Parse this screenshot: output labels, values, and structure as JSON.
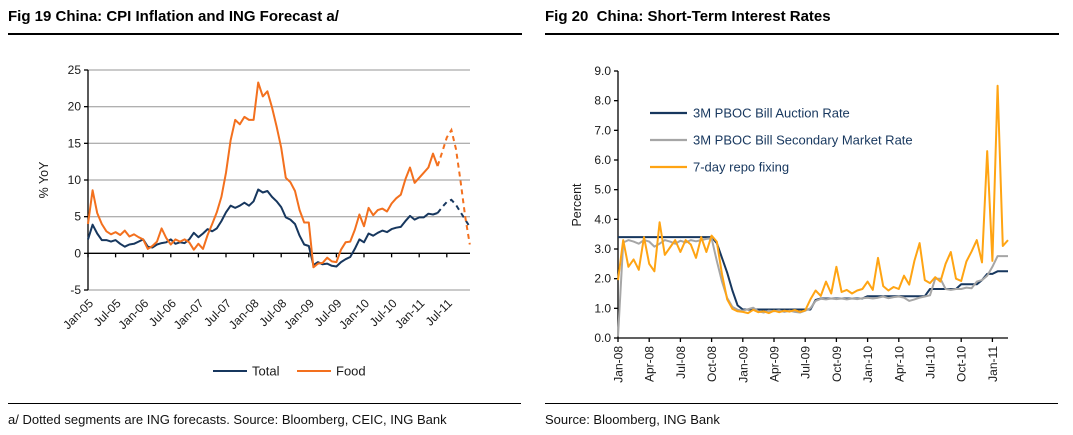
{
  "panels": {
    "left": {
      "title": "Fig 19 China: CPI Inflation and ING Forecast a/",
      "footnote": "a/ Dotted segments are ING forecasts. Source: Bloomberg, CEIC, ING Bank"
    },
    "right": {
      "title": "Fig 20  China: Short-Term Interest Rates",
      "footnote": "Source: Bloomberg, ING Bank"
    }
  },
  "chart_data": [
    {
      "id": "cpi",
      "type": "line",
      "title": "China: CPI Inflation and ING Forecast",
      "ylabel": "% YoY",
      "ylim": [
        -5,
        25
      ],
      "y_tick_labels": [
        "25",
        "20",
        "15",
        "10",
        "5",
        "0",
        "-5"
      ],
      "grid": true,
      "grid_color": "#969696",
      "grid_values": [
        25,
        20,
        15,
        10,
        5,
        -5
      ],
      "x_unit": "month",
      "x_start": "Jan-05",
      "x_end": "Dec-11",
      "x_tick_labels": [
        "Jan-05",
        "Jul-05",
        "Jan-06",
        "Jul-06",
        "Jan-07",
        "Jul-07",
        "Jan-08",
        "Jul-08",
        "Jan-09",
        "Jul-09",
        "Jan-10",
        "Jul-10",
        "Jan-11",
        "Jul-11"
      ],
      "x_tick_every": 6,
      "forecast_from_index": 76,
      "forecast_note": "Dotted segments are ING forecasts",
      "legend_position": "bottom",
      "series": [
        {
          "name": "Total",
          "color": "#17375E",
          "values": [
            1.9,
            3.9,
            2.7,
            1.8,
            1.8,
            1.6,
            1.8,
            1.3,
            0.9,
            1.2,
            1.3,
            1.6,
            1.9,
            0.9,
            0.8,
            1.2,
            1.4,
            1.5,
            1.9,
            1.3,
            1.5,
            1.4,
            1.9,
            2.8,
            2.2,
            2.7,
            3.3,
            3.0,
            3.4,
            4.4,
            5.6,
            6.5,
            6.2,
            6.5,
            6.9,
            6.5,
            7.1,
            8.7,
            8.3,
            8.5,
            7.7,
            7.1,
            6.3,
            4.9,
            4.6,
            4.0,
            2.4,
            1.2,
            1.0,
            -1.6,
            -1.2,
            -1.5,
            -1.4,
            -1.7,
            -1.8,
            -1.2,
            -0.8,
            -0.5,
            0.6,
            1.9,
            1.5,
            2.7,
            2.4,
            2.8,
            3.1,
            2.9,
            3.3,
            3.5,
            3.6,
            4.4,
            5.1,
            4.6,
            4.9,
            4.9,
            5.4,
            5.3,
            5.5,
            6.3,
            7.0,
            7.3,
            6.6,
            5.6,
            4.6,
            3.6
          ]
        },
        {
          "name": "Food",
          "color": "#F3701E",
          "values": [
            4.0,
            8.6,
            5.5,
            4.0,
            3.0,
            2.6,
            2.9,
            2.5,
            3.1,
            2.3,
            2.6,
            2.2,
            1.9,
            0.6,
            1.0,
            1.6,
            3.4,
            2.1,
            1.2,
            1.9,
            1.6,
            1.9,
            1.5,
            0.5,
            1.3,
            0.6,
            2.5,
            4.0,
            5.6,
            7.7,
            11.0,
            15.4,
            18.2,
            17.6,
            18.6,
            18.2,
            18.2,
            23.3,
            21.4,
            22.1,
            19.9,
            17.3,
            14.4,
            10.3,
            9.7,
            8.5,
            5.9,
            4.2,
            4.2,
            -1.9,
            -1.4,
            -1.3,
            -0.6,
            -1.1,
            -1.2,
            0.5,
            1.5,
            1.6,
            3.2,
            5.3,
            3.7,
            6.2,
            5.2,
            5.9,
            6.1,
            5.7,
            6.8,
            7.5,
            8.0,
            10.1,
            11.7,
            9.6,
            10.3,
            11.0,
            11.7,
            13.6,
            11.9,
            13.8,
            15.8,
            16.8,
            14.2,
            9.8,
            5.0,
            1.2
          ]
        }
      ]
    },
    {
      "id": "rates",
      "type": "line",
      "title": "China: Short-Term Interest Rates",
      "ylabel": "Percent",
      "ylim": [
        0,
        9
      ],
      "y_tick_labels": [
        "9.0",
        "8.0",
        "7.0",
        "6.0",
        "5.0",
        "4.0",
        "3.0",
        "2.0",
        "1.0",
        "0.0"
      ],
      "grid": false,
      "x_unit": "half-month",
      "x_start": "Jan-08",
      "x_end": "Mar-11",
      "x_tick_labels": [
        "Jan-08",
        "Apr-08",
        "Jul-08",
        "Oct-08",
        "Jan-09",
        "Apr-09",
        "Jul-09",
        "Oct-09",
        "Jan-10",
        "Apr-10",
        "Jul-10",
        "Oct-10",
        "Jan-11"
      ],
      "x_tick_every": 6,
      "legend_position": "inside-top-left",
      "series": [
        {
          "name": "3M PBOC Bill Auction Rate",
          "color": "#17375E",
          "values": [
            3.4,
            3.4,
            3.4,
            3.4,
            3.4,
            3.4,
            3.4,
            3.4,
            3.4,
            3.4,
            3.4,
            3.4,
            3.4,
            3.4,
            3.4,
            3.4,
            3.4,
            3.4,
            3.4,
            3.2,
            2.7,
            2.2,
            1.6,
            1.1,
            0.96,
            0.96,
            0.96,
            0.96,
            0.96,
            0.96,
            0.96,
            0.96,
            0.96,
            0.96,
            0.96,
            0.96,
            0.96,
            0.96,
            1.28,
            1.33,
            1.33,
            1.33,
            1.33,
            1.33,
            1.33,
            1.33,
            1.33,
            1.33,
            1.41,
            1.41,
            1.41,
            1.41,
            1.41,
            1.41,
            1.41,
            1.41,
            1.41,
            1.41,
            1.41,
            1.41,
            1.65,
            1.65,
            1.65,
            1.65,
            1.65,
            1.65,
            1.81,
            1.81,
            1.81,
            1.81,
            1.95,
            2.16,
            2.16,
            2.25,
            2.25,
            2.25
          ]
        },
        {
          "name": "3M PBOC Bill Secondary Market Rate",
          "color": "#A6A6A6",
          "values": [
            0.05,
            3.22,
            3.3,
            3.25,
            3.18,
            3.3,
            3.25,
            3.08,
            3.18,
            3.3,
            3.25,
            3.18,
            3.28,
            3.22,
            3.3,
            3.26,
            3.3,
            3.34,
            3.36,
            2.6,
            1.9,
            1.35,
            1.05,
            0.95,
            0.92,
            0.97,
            1.02,
            0.9,
            0.86,
            0.92,
            0.9,
            0.93,
            0.88,
            0.92,
            0.88,
            0.86,
            0.92,
            1.0,
            1.25,
            1.32,
            1.3,
            1.33,
            1.31,
            1.33,
            1.3,
            1.33,
            1.31,
            1.34,
            1.36,
            1.33,
            1.36,
            1.4,
            1.34,
            1.38,
            1.4,
            1.36,
            1.25,
            1.3,
            1.36,
            1.4,
            1.44,
            2.0,
            2.0,
            1.65,
            1.62,
            1.65,
            1.65,
            1.7,
            1.68,
            1.9,
            1.95,
            2.1,
            2.4,
            2.76,
            2.76,
            2.76
          ]
        },
        {
          "name": "7-day repo fixing",
          "color": "#FFA413",
          "values": [
            1.95,
            3.3,
            2.4,
            2.65,
            2.3,
            3.4,
            2.5,
            2.25,
            3.9,
            2.8,
            3.05,
            3.3,
            2.9,
            3.3,
            3.15,
            2.7,
            3.4,
            2.9,
            3.45,
            3.25,
            2.15,
            1.3,
            0.98,
            0.9,
            0.88,
            0.84,
            0.95,
            0.87,
            0.9,
            0.84,
            0.92,
            0.87,
            0.92,
            0.89,
            0.94,
            0.88,
            0.93,
            1.3,
            1.6,
            1.42,
            1.9,
            1.5,
            2.4,
            1.55,
            1.62,
            1.5,
            1.6,
            1.65,
            1.9,
            1.62,
            2.7,
            1.75,
            1.6,
            1.72,
            1.65,
            2.1,
            1.8,
            2.6,
            3.2,
            1.95,
            1.85,
            2.05,
            1.9,
            2.5,
            2.9,
            2.0,
            1.92,
            2.58,
            2.92,
            3.3,
            2.55,
            6.3,
            2.6,
            8.5,
            3.1,
            3.3
          ]
        }
      ]
    }
  ]
}
